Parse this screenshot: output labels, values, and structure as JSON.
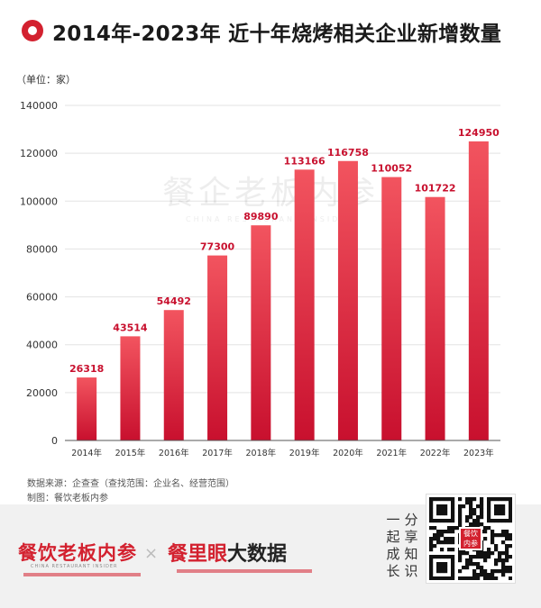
{
  "header": {
    "title": "2014年-2023年 近十年烧烤相关企业新增数量"
  },
  "unit_label": "（单位：家）",
  "colors": {
    "bar_top": "#f2545f",
    "bar_bottom": "#c8102e",
    "label": "#c8102e",
    "accent": "#d3212f"
  },
  "watermark": {
    "text": "餐企老板内参",
    "text_en": "CHINA RESTAURANT INSIDER"
  },
  "chart_data": {
    "type": "bar",
    "title": "2014年-2023年 近十年烧烤相关企业新增数量",
    "xlabel": "",
    "ylabel": "（单位：家）",
    "categories": [
      "2014年",
      "2015年",
      "2016年",
      "2017年",
      "2018年",
      "2019年",
      "2020年",
      "2021年",
      "2022年",
      "2023年"
    ],
    "values": [
      26318,
      43514,
      54492,
      77300,
      89890,
      113166,
      116758,
      110052,
      101722,
      124950
    ],
    "ylim": [
      0,
      140000
    ],
    "yticks": [
      0,
      20000,
      40000,
      60000,
      80000,
      100000,
      120000,
      140000
    ],
    "grid": true,
    "legend": "none"
  },
  "footnotes": {
    "source": "数据来源：企查查（查找范围：企业名、经营范围）",
    "maker": "制图：餐饮老板内参"
  },
  "footer": {
    "brand_left": "餐饮老板内参",
    "brand_left_en": "CHINA RESTAURANT INSIDER",
    "times": "×",
    "brand_right_main": "餐里眼",
    "brand_right_rest": "大数据",
    "slogan_col1": "一起成长",
    "slogan_col2": "分享知识",
    "qr_badge": "餐饮内参"
  }
}
